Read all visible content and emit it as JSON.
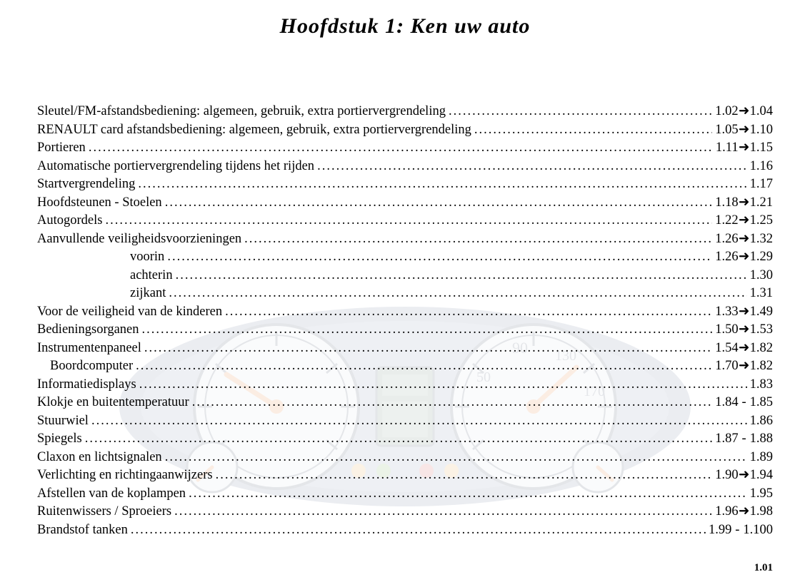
{
  "title": "Hoofdstuk 1: Ken uw auto",
  "page_number": "1.01",
  "arrow_glyph": "➜",
  "background": {
    "housing_color": "#6b7a99",
    "dial_face_color": "#dce3ef",
    "needle_color": "#e67a2e",
    "tick_color": "#3a4660",
    "display_color": "#5a7a6a"
  },
  "toc": [
    {
      "label": "Sleutel/FM-afstandsbediening: algemeen, gebruik, extra portiervergrendeling",
      "from": "1.02",
      "to": "1.04",
      "sep": "arrow",
      "indent": 0
    },
    {
      "label": "RENAULT card afstandsbediening: algemeen, gebruik, extra portiervergrendeling",
      "from": "1.05",
      "to": "1.10",
      "sep": "arrow",
      "indent": 0
    },
    {
      "label": "Portieren",
      "from": "1.11",
      "to": "1.15",
      "sep": "arrow",
      "indent": 0
    },
    {
      "label": "Automatische portiervergrendeling tijdens het rijden",
      "from": "1.16",
      "to": null,
      "sep": null,
      "indent": 0
    },
    {
      "label": "Startvergrendeling",
      "from": "1.17",
      "to": null,
      "sep": null,
      "indent": 0
    },
    {
      "label": "Hoofdsteunen - Stoelen",
      "from": "1.18",
      "to": "1.21",
      "sep": "arrow",
      "indent": 0
    },
    {
      "label": "Autogordels",
      "from": "1.22",
      "to": "1.25",
      "sep": "arrow",
      "indent": 0
    },
    {
      "label": "Aanvullende veiligheidsvoorzieningen",
      "from": "1.26",
      "to": "1.32",
      "sep": "arrow",
      "indent": 0
    },
    {
      "label": "voorin",
      "from": "1.26",
      "to": "1.29",
      "sep": "arrow",
      "indent": 1
    },
    {
      "label": "achterin",
      "from": "1.30",
      "to": null,
      "sep": null,
      "indent": 1
    },
    {
      "label": "zijkant",
      "from": "1.31",
      "to": null,
      "sep": null,
      "indent": 1
    },
    {
      "label": "Voor de veiligheid van de kinderen",
      "from": "1.33",
      "to": "1.49",
      "sep": "arrow",
      "indent": 0
    },
    {
      "label": "Bedieningsorganen",
      "from": "1.50",
      "to": "1.53",
      "sep": "arrow",
      "indent": 0
    },
    {
      "label": "Instrumentenpaneel",
      "from": "1.54",
      "to": "1.82",
      "sep": "arrow",
      "indent": 0
    },
    {
      "label": "Boordcomputer",
      "from": "1.70",
      "to": "1.82",
      "sep": "arrow",
      "indent": 0.5
    },
    {
      "label": "Informatiedisplays",
      "from": "1.83",
      "to": null,
      "sep": null,
      "indent": 0
    },
    {
      "label": "Klokje en buitentemperatuur",
      "from": "1.84",
      "to": "1.85",
      "sep": "dash",
      "indent": 0
    },
    {
      "label": "Stuurwiel",
      "from": "1.86",
      "to": null,
      "sep": null,
      "indent": 0
    },
    {
      "label": "Spiegels",
      "from": "1.87",
      "to": "1.88",
      "sep": "dash",
      "indent": 0
    },
    {
      "label": "Claxon en lichtsignalen",
      "from": "1.89",
      "to": null,
      "sep": null,
      "indent": 0
    },
    {
      "label": "Verlichting en richtingaanwijzers",
      "from": "1.90",
      "to": "1.94",
      "sep": "arrow",
      "indent": 0
    },
    {
      "label": "Afstellen van de koplampen",
      "from": "1.95",
      "to": null,
      "sep": null,
      "indent": 0
    },
    {
      "label": "Ruitenwissers / Sproeiers",
      "from": "1.96",
      "to": "1.98",
      "sep": "arrow",
      "indent": 0
    },
    {
      "label": "Brandstof tanken",
      "from": "1.99",
      "to": "1.100",
      "sep": "dash",
      "indent": 0
    }
  ]
}
